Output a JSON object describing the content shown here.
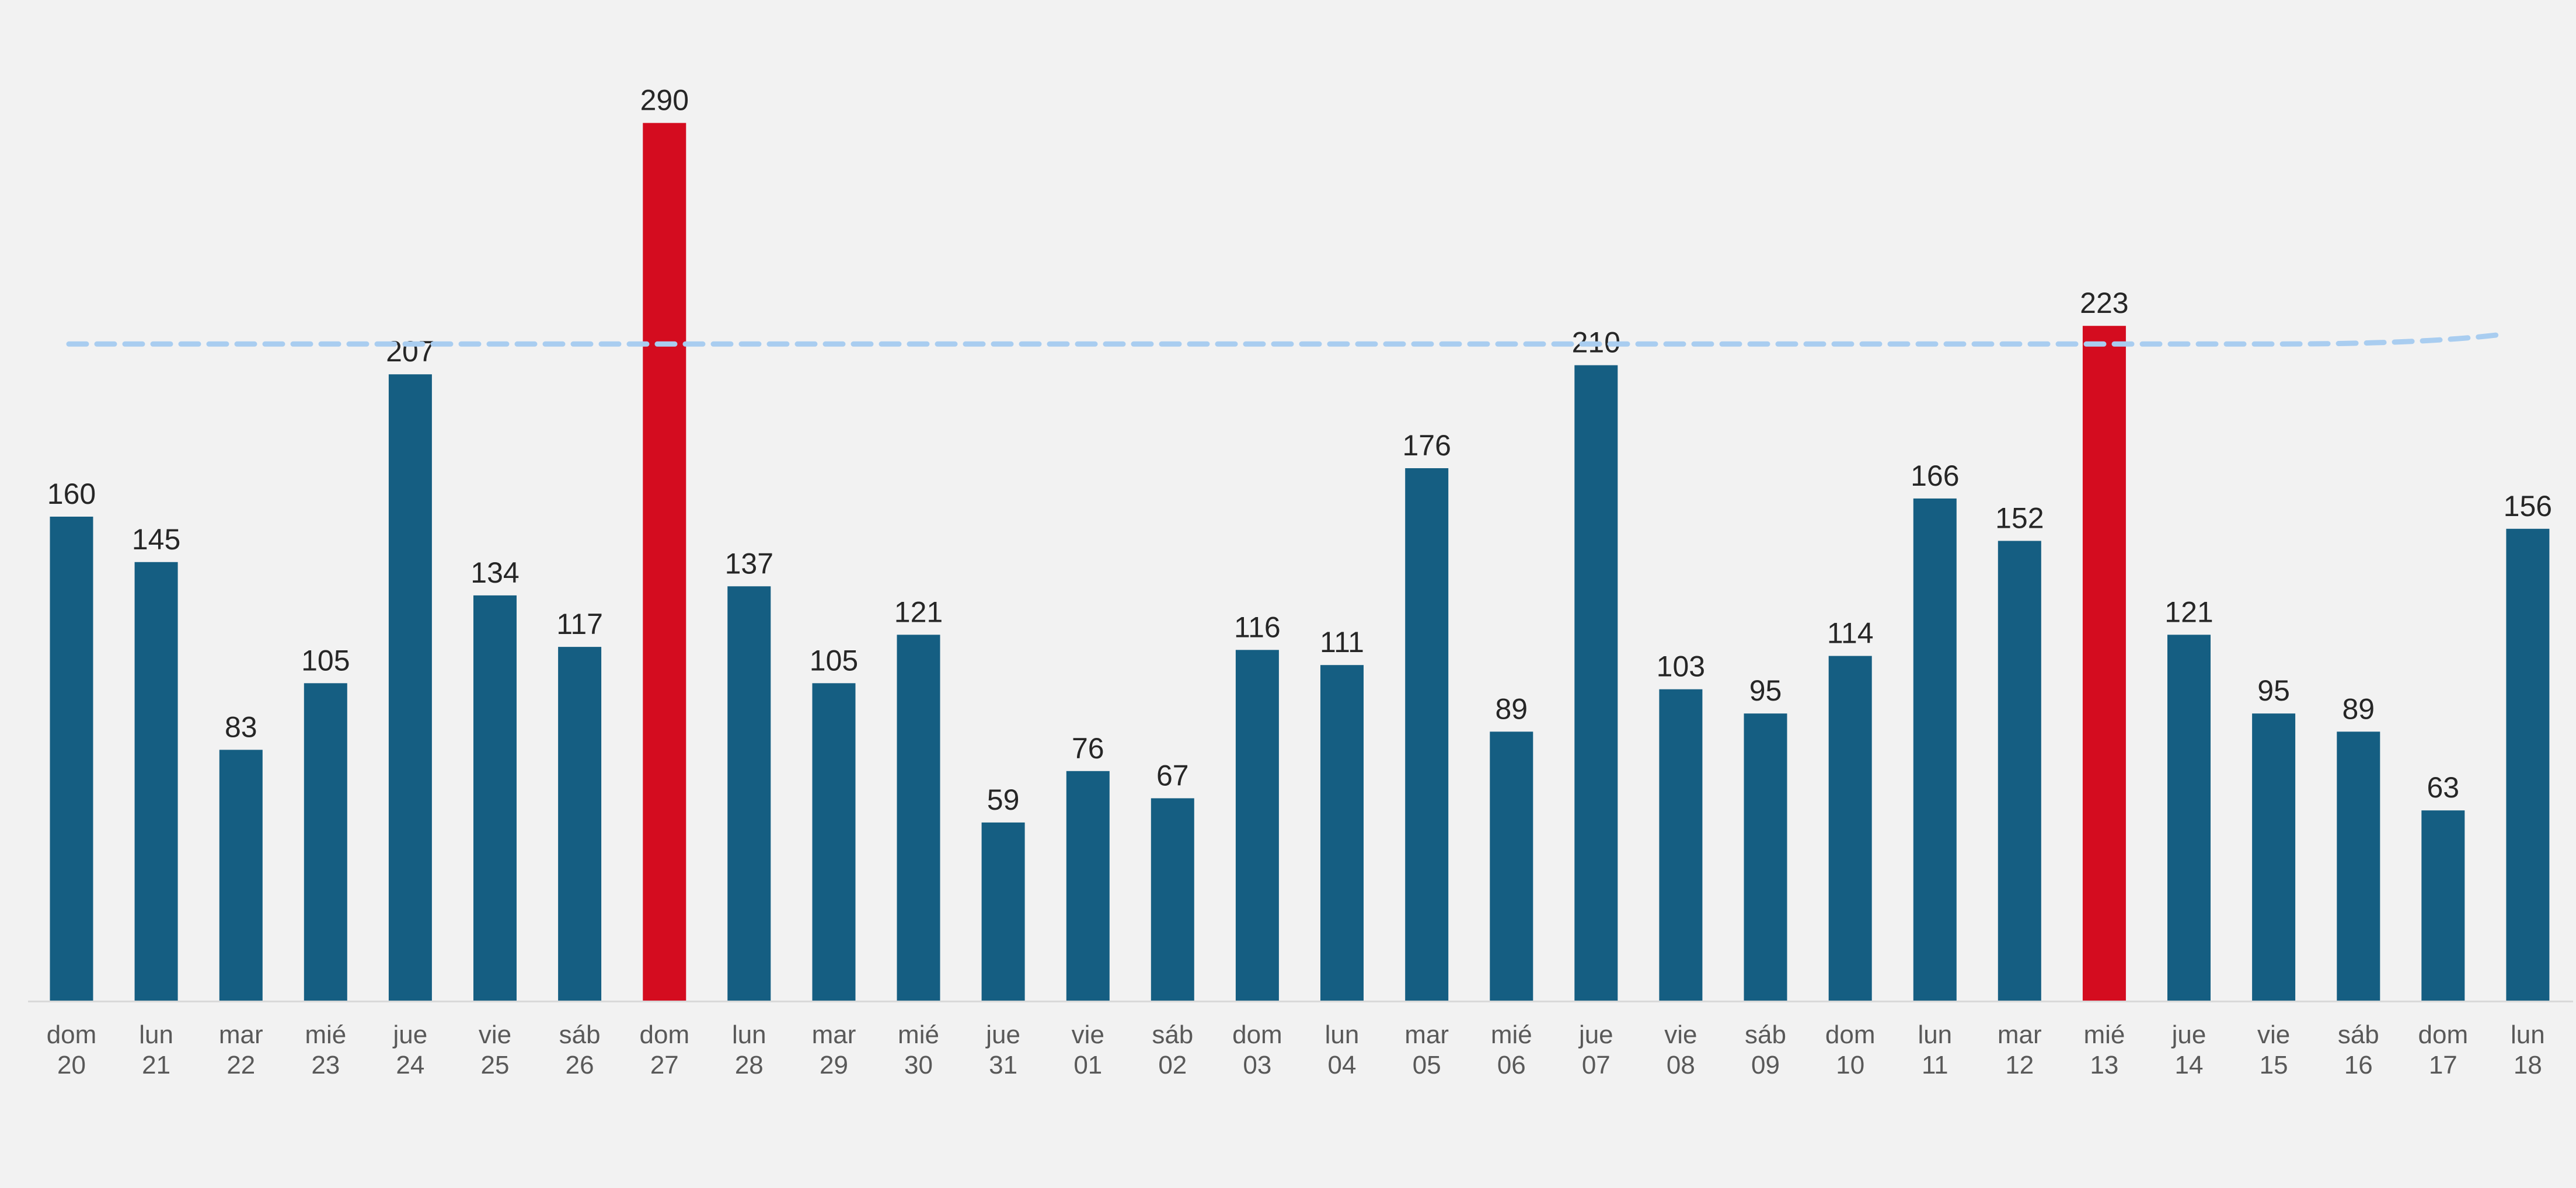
{
  "chart_data": {
    "type": "bar",
    "title": "",
    "xlabel": "",
    "ylabel": "",
    "categories": [
      [
        "dom",
        "20"
      ],
      [
        "lun",
        "21"
      ],
      [
        "mar",
        "22"
      ],
      [
        "mié",
        "23"
      ],
      [
        "jue",
        "24"
      ],
      [
        "vie",
        "25"
      ],
      [
        "sáb",
        "26"
      ],
      [
        "dom",
        "27"
      ],
      [
        "lun",
        "28"
      ],
      [
        "mar",
        "29"
      ],
      [
        "mié",
        "30"
      ],
      [
        "jue",
        "31"
      ],
      [
        "vie",
        "01"
      ],
      [
        "sáb",
        "02"
      ],
      [
        "dom",
        "03"
      ],
      [
        "lun",
        "04"
      ],
      [
        "mar",
        "05"
      ],
      [
        "mié",
        "06"
      ],
      [
        "jue",
        "07"
      ],
      [
        "vie",
        "08"
      ],
      [
        "sáb",
        "09"
      ],
      [
        "dom",
        "10"
      ],
      [
        "lun",
        "11"
      ],
      [
        "mar",
        "12"
      ],
      [
        "mié",
        "13"
      ],
      [
        "jue",
        "14"
      ],
      [
        "vie",
        "15"
      ],
      [
        "sáb",
        "16"
      ],
      [
        "dom",
        "17"
      ],
      [
        "lun",
        "18"
      ]
    ],
    "values": [
      160,
      145,
      83,
      105,
      207,
      134,
      117,
      290,
      137,
      105,
      121,
      59,
      76,
      67,
      116,
      111,
      176,
      89,
      210,
      103,
      95,
      114,
      166,
      152,
      223,
      121,
      95,
      89,
      63,
      156
    ],
    "highlight_indices": [
      7,
      24
    ],
    "trend_line": {
      "style": "dashed",
      "x_from_index": 0,
      "x_to_index": 29,
      "points": [
        {
          "index": 0,
          "value": 217
        },
        {
          "index": 26,
          "value": 217
        },
        {
          "index": 29,
          "value": 220
        }
      ]
    },
    "ylim": [
      0,
      320
    ],
    "grid": false,
    "legend": "none",
    "colors": {
      "bar": "#155e82",
      "highlight": "#d40c1f",
      "trend": "#a9cdf0",
      "axis": "#d9d9d9",
      "background": "#f2f2f2"
    }
  }
}
